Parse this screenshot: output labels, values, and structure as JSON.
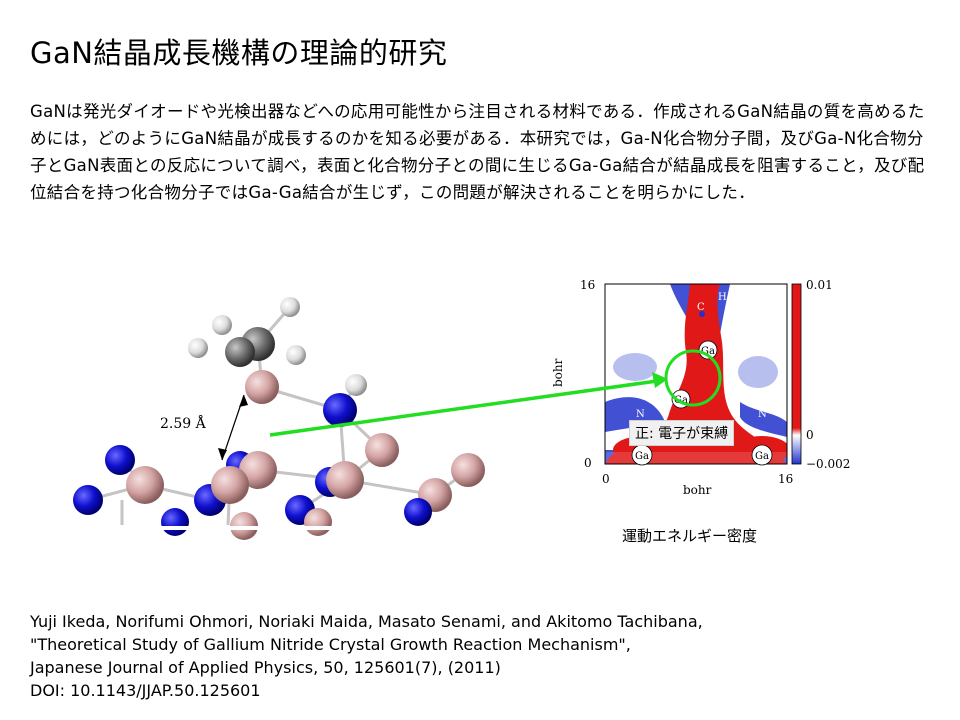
{
  "title": "GaN結晶成長機構の理論的研究",
  "abstract": "GaNは発光ダイオードや光検出器などへの応用可能性から注目される材料である．作成されるGaN結晶の質を高めるためには，どのようにGaN結晶が成長するのかを知る必要がある．本研究では，Ga-N化合物分子間，及びGa-N化合物分子とGaN表面との反応について調べ，表面と化合物分子との間に生じるGa-Ga結合が結晶成長を阻害すること，及び配位結合を持つ化合物分子ではGa-Ga結合が生じず，この問題が解決されることを明らかにした．",
  "figure": {
    "bond_length_label": "2.59 Å",
    "arrow_color": "#22dd22",
    "map": {
      "y_axis_label": "bohr",
      "x_axis_label": "bohr",
      "x_ticks": [
        "0",
        "16"
      ],
      "y_ticks": [
        "16",
        "0"
      ],
      "colorbar_ticks": [
        "0.01",
        "0",
        "−0.002"
      ],
      "atom_labels": [
        "H",
        "C",
        "Ga",
        "Ga",
        "N",
        "N",
        "Ga",
        "Ga"
      ],
      "callout": "正: 電子が束縛",
      "caption": "運動エネルギー密度",
      "positive_color": "#e01818",
      "negative_color": "#2233cc"
    }
  },
  "reference": {
    "authors": "Yuji Ikeda, Norifumi Ohmori, Noriaki Maida, Masato Senami, and Akitomo Tachibana,",
    "paper_title": "\"Theoretical Study of Gallium Nitride Crystal Growth Reaction Mechanism\",",
    "journal": "Japanese Journal of Applied Physics, 50, 125601(7), (2011)",
    "doi": "DOI: 10.1143/JJAP.50.125601"
  }
}
